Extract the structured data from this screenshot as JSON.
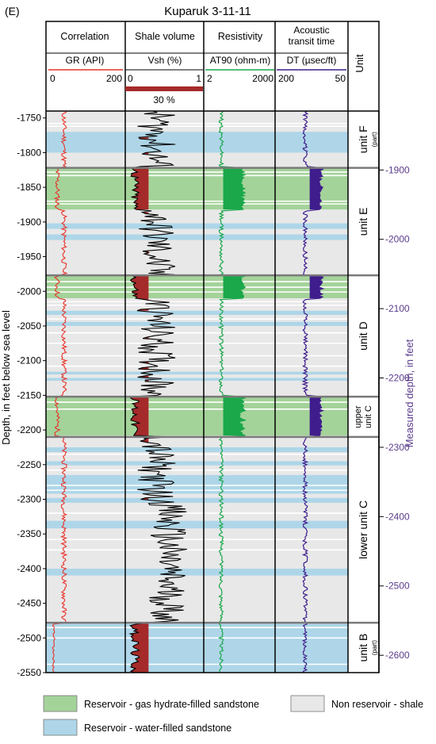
{
  "chart_data": {
    "type": "line",
    "panel": "(E)",
    "title": "Kuparuk 3-11-11",
    "tracks": [
      {
        "header": "Correlation",
        "curve": "GR (API)",
        "scale_left": "0",
        "scale_right": "200",
        "color": "#e8342a"
      },
      {
        "header": "Shale volume",
        "curve": "Vsh (%)",
        "scale_left": "0",
        "scale_right": "1",
        "color": "#000000",
        "cutoff_label": "30 %",
        "cutoff_color": "#a52a2a"
      },
      {
        "header": "Resistivity",
        "curve": "AT90 (ohm-m)",
        "scale_left": "2",
        "scale_right": "2000",
        "color": "#1aa84a"
      },
      {
        "header": "Acoustic transit time",
        "curve": "DT (µsec/ft)",
        "scale_left": "200",
        "scale_right": "50",
        "color": "#3f1d8c"
      }
    ],
    "unit_header": "Unit",
    "y_left": {
      "label": "Depth, in feet below sea level",
      "range": [
        -1740,
        -2550
      ],
      "ticks": [
        "-1750",
        "-1800",
        "-1850",
        "-1900",
        "-1950",
        "-2000",
        "-2050",
        "-2100",
        "-2150",
        "-2200",
        "-2250",
        "-2300",
        "-2350",
        "-2400",
        "-2450",
        "-2500",
        "-2550"
      ]
    },
    "y_right": {
      "label": "Measured depth, in feet",
      "ticks": [
        "-1900",
        "-2000",
        "-2100",
        "-2200",
        "-2300",
        "-2400",
        "-2500",
        "-2600"
      ],
      "offset": -75,
      "color": "#5b3c8c"
    },
    "units": [
      {
        "name": "unit F",
        "sub": "(part)",
        "top": -1740,
        "bottom": -1822
      },
      {
        "name": "unit E",
        "sub": "",
        "top": -1822,
        "bottom": -1977
      },
      {
        "name": "unit D",
        "sub": "",
        "top": -1977,
        "bottom": -2152
      },
      {
        "name": "upper unit C",
        "sub": "",
        "top": -2152,
        "bottom": -2210
      },
      {
        "name": "lower unit C",
        "sub": "",
        "top": -2210,
        "bottom": -2478
      },
      {
        "name": "unit B",
        "sub": "(part)",
        "top": -2478,
        "bottom": -2550
      }
    ],
    "boundaries": [
      -1822,
      -1977,
      -2152,
      -2210,
      -2478
    ],
    "hydrate_intervals": [
      [
        -1822,
        -1882
      ],
      [
        -1977,
        -2010
      ],
      [
        -2152,
        -2208
      ]
    ],
    "water_intervals": [
      [
        -1770,
        -1800
      ],
      [
        -1902,
        -1910
      ],
      [
        -1918,
        -1926
      ],
      [
        -2028,
        -2034
      ],
      [
        -2044,
        -2050
      ],
      [
        -2116,
        -2120
      ],
      [
        -2125,
        -2129
      ],
      [
        -2225,
        -2232
      ],
      [
        -2245,
        -2251
      ],
      [
        -2265,
        -2292
      ],
      [
        -2298,
        -2305
      ],
      [
        -2331,
        -2342
      ],
      [
        -2400,
        -2410
      ],
      [
        -2478,
        -2550
      ]
    ],
    "legend": [
      {
        "label": "Reservoir - gas hydrate-filled sandstone",
        "color": "#a4d39a"
      },
      {
        "label": "Non reservoir - shale",
        "color": "#e8e8e8"
      },
      {
        "label": "Reservoir - water-filled sandstone",
        "color": "#aed6e8"
      }
    ],
    "colors": {
      "hydrate": "#a4d39a",
      "water": "#aed6e8",
      "shale": "#e8e8e8",
      "sand_fill": "#a52a2a",
      "boundary": "#7a7a7a"
    }
  }
}
